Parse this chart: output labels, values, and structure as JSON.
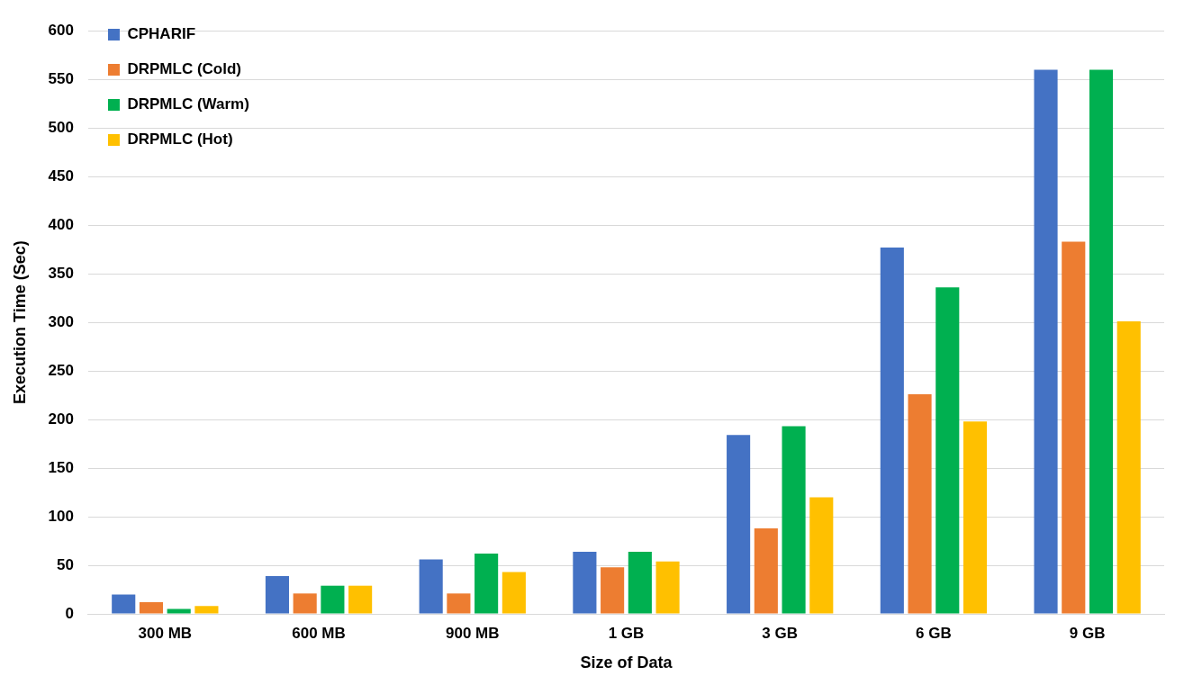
{
  "chart_data": {
    "type": "bar",
    "xlabel": "Size of Data",
    "ylabel": "Execution Time (Sec)",
    "categories": [
      "300 MB",
      "600 MB",
      "900 MB",
      "1 GB",
      "3 GB",
      "6 GB",
      "9 GB"
    ],
    "series": [
      {
        "name": "CPHARIF",
        "color": "#4472c4",
        "values": [
          20,
          39,
          56,
          64,
          184,
          377,
          560
        ]
      },
      {
        "name": "DRPMLC (Cold)",
        "color": "#ed7d31",
        "values": [
          12,
          21,
          21,
          48,
          88,
          226,
          383
        ]
      },
      {
        "name": "DRPMLC (Warm)",
        "color": "#00b050",
        "values": [
          5,
          29,
          62,
          64,
          193,
          336,
          560
        ]
      },
      {
        "name": "DRPMLC (Hot)",
        "color": "#ffc000",
        "values": [
          8,
          29,
          43,
          54,
          120,
          198,
          301
        ]
      }
    ],
    "ylim": [
      0,
      600
    ],
    "yticks": [
      0,
      50,
      100,
      150,
      200,
      250,
      300,
      350,
      400,
      450,
      500,
      550,
      600
    ],
    "grid": "y",
    "legend": "top left"
  }
}
